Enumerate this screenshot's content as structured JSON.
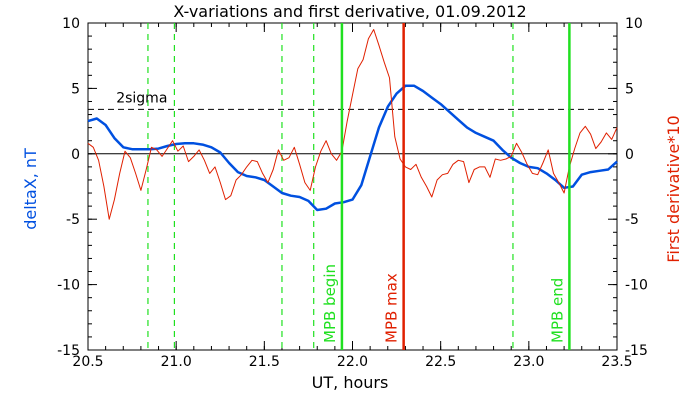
{
  "chart_data": {
    "type": "line",
    "title": "X-variations and first derivative, 01.09.2012",
    "xlabel": "UT, hours",
    "ylabel_left": "deltaX, nT",
    "ylabel_right": "First derivative*10",
    "xlim": [
      20.5,
      23.5
    ],
    "ylim": [
      -15,
      10
    ],
    "xticks": [
      20.5,
      21.0,
      21.5,
      22.0,
      22.5,
      23.0,
      23.5
    ],
    "xtick_labels": [
      "20.5",
      "21.0",
      "21.5",
      "22.0",
      "22.5",
      "23.0",
      "23.5"
    ],
    "yticks": [
      -15,
      -10,
      -5,
      0,
      5,
      10
    ],
    "ytick_labels": [
      "-15",
      "-10",
      "-5",
      "0",
      "5",
      "10"
    ],
    "colors": {
      "deltaX": "#0050e0",
      "derivative": "#e02000",
      "markers": "#20e020",
      "mpb_max": "#e02000",
      "axes": "#000000"
    },
    "reference_lines": [
      {
        "label": "2sigma",
        "y": 3.4,
        "style": "dashed"
      },
      {
        "label": "",
        "y": 0,
        "style": "solid"
      }
    ],
    "dashed_markers_x": [
      20.84,
      20.99,
      21.6,
      21.78,
      22.91
    ],
    "vertical_markers": [
      {
        "label": "MPB begin",
        "x": 21.94,
        "color": "#20e020"
      },
      {
        "label": "MPB max",
        "x": 22.29,
        "color": "#e02000"
      },
      {
        "label": "MPB end",
        "x": 23.23,
        "color": "#20e020"
      }
    ],
    "series": [
      {
        "name": "deltaX",
        "color": "#0050e0",
        "x": [
          20.5,
          20.55,
          20.6,
          20.65,
          20.7,
          20.75,
          20.8,
          20.85,
          20.9,
          20.95,
          21.0,
          21.05,
          21.1,
          21.15,
          21.2,
          21.25,
          21.3,
          21.35,
          21.4,
          21.45,
          21.5,
          21.55,
          21.6,
          21.65,
          21.7,
          21.75,
          21.8,
          21.85,
          21.9,
          21.95,
          22.0,
          22.05,
          22.1,
          22.15,
          22.2,
          22.25,
          22.3,
          22.35,
          22.4,
          22.45,
          22.5,
          22.55,
          22.6,
          22.65,
          22.7,
          22.75,
          22.8,
          22.85,
          22.9,
          22.95,
          23.0,
          23.05,
          23.1,
          23.15,
          23.2,
          23.25,
          23.3,
          23.35,
          23.4,
          23.45,
          23.5
        ],
        "y": [
          2.5,
          2.7,
          2.2,
          1.2,
          0.5,
          0.35,
          0.35,
          0.35,
          0.4,
          0.6,
          0.75,
          0.8,
          0.8,
          0.7,
          0.5,
          0.1,
          -0.7,
          -1.4,
          -1.7,
          -1.8,
          -2.0,
          -2.5,
          -3.0,
          -3.2,
          -3.3,
          -3.6,
          -4.3,
          -4.2,
          -3.8,
          -3.7,
          -3.5,
          -2.4,
          -0.2,
          2.0,
          3.6,
          4.6,
          5.2,
          5.2,
          4.8,
          4.3,
          3.8,
          3.2,
          2.6,
          2.0,
          1.6,
          1.3,
          1.0,
          0.3,
          -0.3,
          -0.7,
          -1.0,
          -1.1,
          -1.5,
          -2.0,
          -2.6,
          -2.5,
          -1.6,
          -1.4,
          -1.3,
          -1.2,
          -0.6
        ]
      },
      {
        "name": "First derivative*10",
        "color": "#e02000",
        "x": [
          20.5,
          20.53,
          20.56,
          20.59,
          20.62,
          20.65,
          20.68,
          20.71,
          20.74,
          20.77,
          20.8,
          20.83,
          20.86,
          20.89,
          20.92,
          20.95,
          20.98,
          21.01,
          21.04,
          21.07,
          21.1,
          21.13,
          21.16,
          21.19,
          21.22,
          21.25,
          21.28,
          21.31,
          21.34,
          21.37,
          21.4,
          21.43,
          21.46,
          21.49,
          21.52,
          21.55,
          21.58,
          21.61,
          21.64,
          21.67,
          21.7,
          21.73,
          21.76,
          21.79,
          21.82,
          21.85,
          21.88,
          21.91,
          21.94,
          21.97,
          22.0,
          22.03,
          22.06,
          22.09,
          22.12,
          22.15,
          22.18,
          22.21,
          22.24,
          22.27,
          22.3,
          22.33,
          22.36,
          22.39,
          22.42,
          22.45,
          22.48,
          22.51,
          22.54,
          22.57,
          22.6,
          22.63,
          22.66,
          22.69,
          22.72,
          22.75,
          22.78,
          22.81,
          22.84,
          22.87,
          22.9,
          22.93,
          22.96,
          22.99,
          23.02,
          23.05,
          23.08,
          23.11,
          23.14,
          23.17,
          23.2,
          23.23,
          23.26,
          23.29,
          23.32,
          23.35,
          23.38,
          23.41,
          23.44,
          23.47,
          23.5
        ],
        "y": [
          0.8,
          0.5,
          -0.5,
          -2.5,
          -5.0,
          -3.5,
          -1.5,
          0.2,
          -0.3,
          -1.5,
          -2.8,
          -1.2,
          0.5,
          0.3,
          -0.2,
          0.4,
          1.0,
          0.2,
          0.6,
          -0.6,
          -0.2,
          0.3,
          -0.5,
          -1.5,
          -1.0,
          -2.2,
          -3.5,
          -3.2,
          -2.0,
          -1.6,
          -1.0,
          -0.5,
          -0.6,
          -1.5,
          -2.2,
          -1.2,
          0.3,
          -0.5,
          -0.3,
          0.5,
          -0.8,
          -2.2,
          -2.8,
          -1.0,
          0.2,
          1.0,
          0.0,
          -0.5,
          0.2,
          2.5,
          4.5,
          6.5,
          7.2,
          8.8,
          9.5,
          8.3,
          7.0,
          5.8,
          1.3,
          -0.4,
          -1.0,
          -1.2,
          -0.8,
          -1.8,
          -2.5,
          -3.3,
          -2.0,
          -1.6,
          -1.5,
          -0.8,
          -0.5,
          -0.6,
          -2.2,
          -1.2,
          -1.0,
          -1.0,
          -1.8,
          -0.4,
          -0.5,
          -0.4,
          -0.2,
          0.8,
          0.1,
          -0.8,
          -1.5,
          -1.6,
          -0.7,
          0.3,
          -1.5,
          -2.2,
          -3.0,
          -1.0,
          0.4,
          1.6,
          2.1,
          1.5,
          0.4,
          0.9,
          1.6,
          1.1,
          2.0
        ]
      }
    ]
  }
}
